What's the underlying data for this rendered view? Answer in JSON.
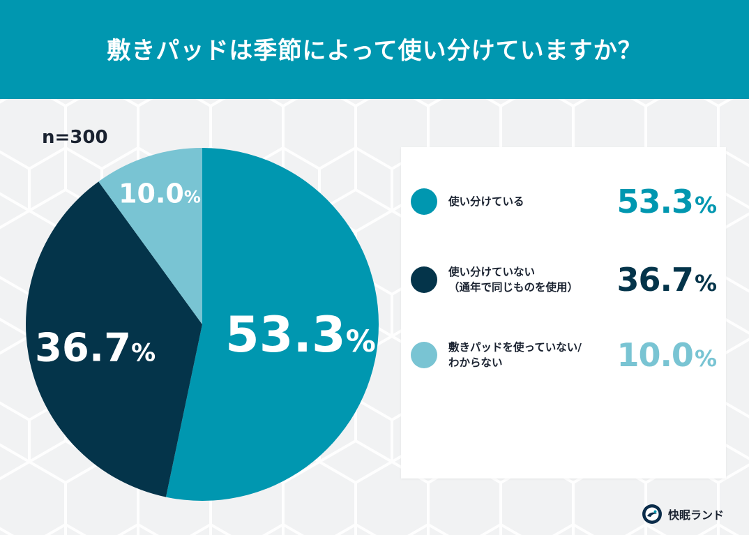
{
  "header": {
    "title": "敷きパッドは季節によって使い分けていますか？"
  },
  "sample_size": "n=300",
  "brand": {
    "label": "快眠ランド",
    "logo_icon": "kaimin-land-logo-icon"
  },
  "colors": {
    "header_bg": "#0097b0",
    "slice_1": "#0097b0",
    "slice_2": "#04344a",
    "slice_3": "#79c4d3",
    "background": "#f1f2f3"
  },
  "chart_data": {
    "type": "pie",
    "title": "敷きパッドは季節によって使い分けていますか？",
    "subtitle": "n=300",
    "legend_position": "right",
    "unit": "%",
    "slices": [
      {
        "label": "使い分けている",
        "value": 53.3,
        "display": "53.3",
        "color": "#0097b0"
      },
      {
        "label": "使い分けていない\n（通年で同じものを使用）",
        "value": 36.7,
        "display": "36.7",
        "color": "#04344a"
      },
      {
        "label": "敷きパッドを使っていない/\nわからない",
        "value": 10.0,
        "display": "10.0",
        "color": "#79c4d3"
      }
    ]
  }
}
